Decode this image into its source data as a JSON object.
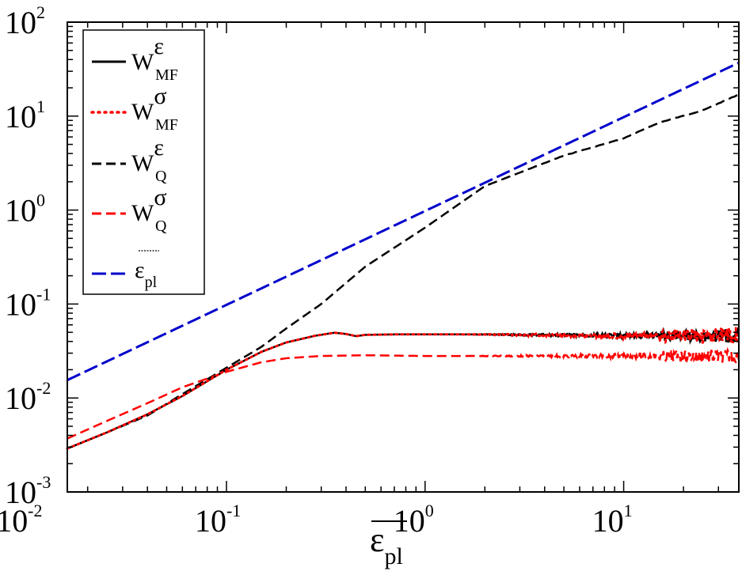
{
  "chart_data": {
    "type": "line",
    "scale": {
      "x": "log",
      "y": "log"
    },
    "xlim": [
      0.0158,
      38
    ],
    "ylim": [
      0.001,
      100
    ],
    "x_ticks": [
      {
        "base": "10",
        "exp": "-2"
      },
      {
        "base": "10",
        "exp": "-1"
      },
      {
        "base": "10",
        "exp": "0"
      },
      {
        "base": "10",
        "exp": "1"
      }
    ],
    "y_ticks": [
      {
        "base": "10",
        "exp": "-3"
      },
      {
        "base": "10",
        "exp": "-2"
      },
      {
        "base": "10",
        "exp": "-1"
      },
      {
        "base": "10",
        "exp": "0"
      },
      {
        "base": "10",
        "exp": "1"
      },
      {
        "base": "10",
        "exp": "2"
      }
    ],
    "xlabel": {
      "main": "ε",
      "sub": "pl",
      "overline": true
    },
    "legend_position": "top-left",
    "series": [
      {
        "name": {
          "main": "W",
          "sup": "ε",
          "sub": "MF"
        },
        "color": "#000000",
        "style": "solid",
        "noisy": true,
        "x": [
          0.0158,
          0.025,
          0.04,
          0.06,
          0.1,
          0.15,
          0.2,
          0.28,
          0.35,
          0.4,
          0.45,
          0.5,
          0.7,
          1,
          2,
          5,
          10,
          20,
          38
        ],
        "y": [
          0.0029,
          0.0043,
          0.0067,
          0.0105,
          0.02,
          0.031,
          0.039,
          0.046,
          0.0495,
          0.048,
          0.0455,
          0.047,
          0.0475,
          0.0475,
          0.0475,
          0.0465,
          0.046,
          0.046,
          0.046
        ]
      },
      {
        "name": {
          "main": "W",
          "sup": "σ",
          "sub": "MF"
        },
        "color": "#ff0000",
        "style": "dotted",
        "noisy": true,
        "x": [
          0.0158,
          0.025,
          0.04,
          0.06,
          0.1,
          0.15,
          0.2,
          0.28,
          0.35,
          0.4,
          0.45,
          0.5,
          0.7,
          1,
          2,
          5,
          10,
          20,
          38
        ],
        "y": [
          0.0029,
          0.0043,
          0.0067,
          0.0105,
          0.02,
          0.031,
          0.039,
          0.046,
          0.0495,
          0.048,
          0.0455,
          0.047,
          0.0475,
          0.0475,
          0.0475,
          0.0465,
          0.046,
          0.046,
          0.046
        ]
      },
      {
        "name": {
          "main": "W",
          "sup": "ε",
          "sub": "Q"
        },
        "color": "#000000",
        "style": "dashed",
        "noisy": false,
        "x": [
          0.0158,
          0.025,
          0.04,
          0.06,
          0.1,
          0.15,
          0.2,
          0.3,
          0.5,
          1,
          2,
          5,
          10,
          15,
          25,
          38
        ],
        "y": [
          0.0029,
          0.0043,
          0.0065,
          0.011,
          0.021,
          0.035,
          0.055,
          0.1,
          0.25,
          0.65,
          1.8,
          3.8,
          5.8,
          8.5,
          11.5,
          17
        ]
      },
      {
        "name": {
          "main": "W",
          "sup": "σ",
          "sub": "Q"
        },
        "color": "#ff0000",
        "style": "dashed",
        "noisy": true,
        "x": [
          0.0158,
          0.025,
          0.04,
          0.06,
          0.1,
          0.15,
          0.2,
          0.3,
          0.5,
          1,
          2,
          5,
          10,
          20,
          38
        ],
        "y": [
          0.0037,
          0.0057,
          0.0088,
          0.013,
          0.019,
          0.024,
          0.0265,
          0.028,
          0.0285,
          0.028,
          0.028,
          0.028,
          0.028,
          0.0278,
          0.0278
        ]
      },
      {
        "name": {
          "main": "ε",
          "sup": "",
          "sub": "pl",
          "overline": true
        },
        "color": "#0000cc",
        "style": "longdash",
        "noisy": false,
        "x": [
          0.0158,
          38
        ],
        "y": [
          0.0155,
          37
        ]
      }
    ]
  }
}
